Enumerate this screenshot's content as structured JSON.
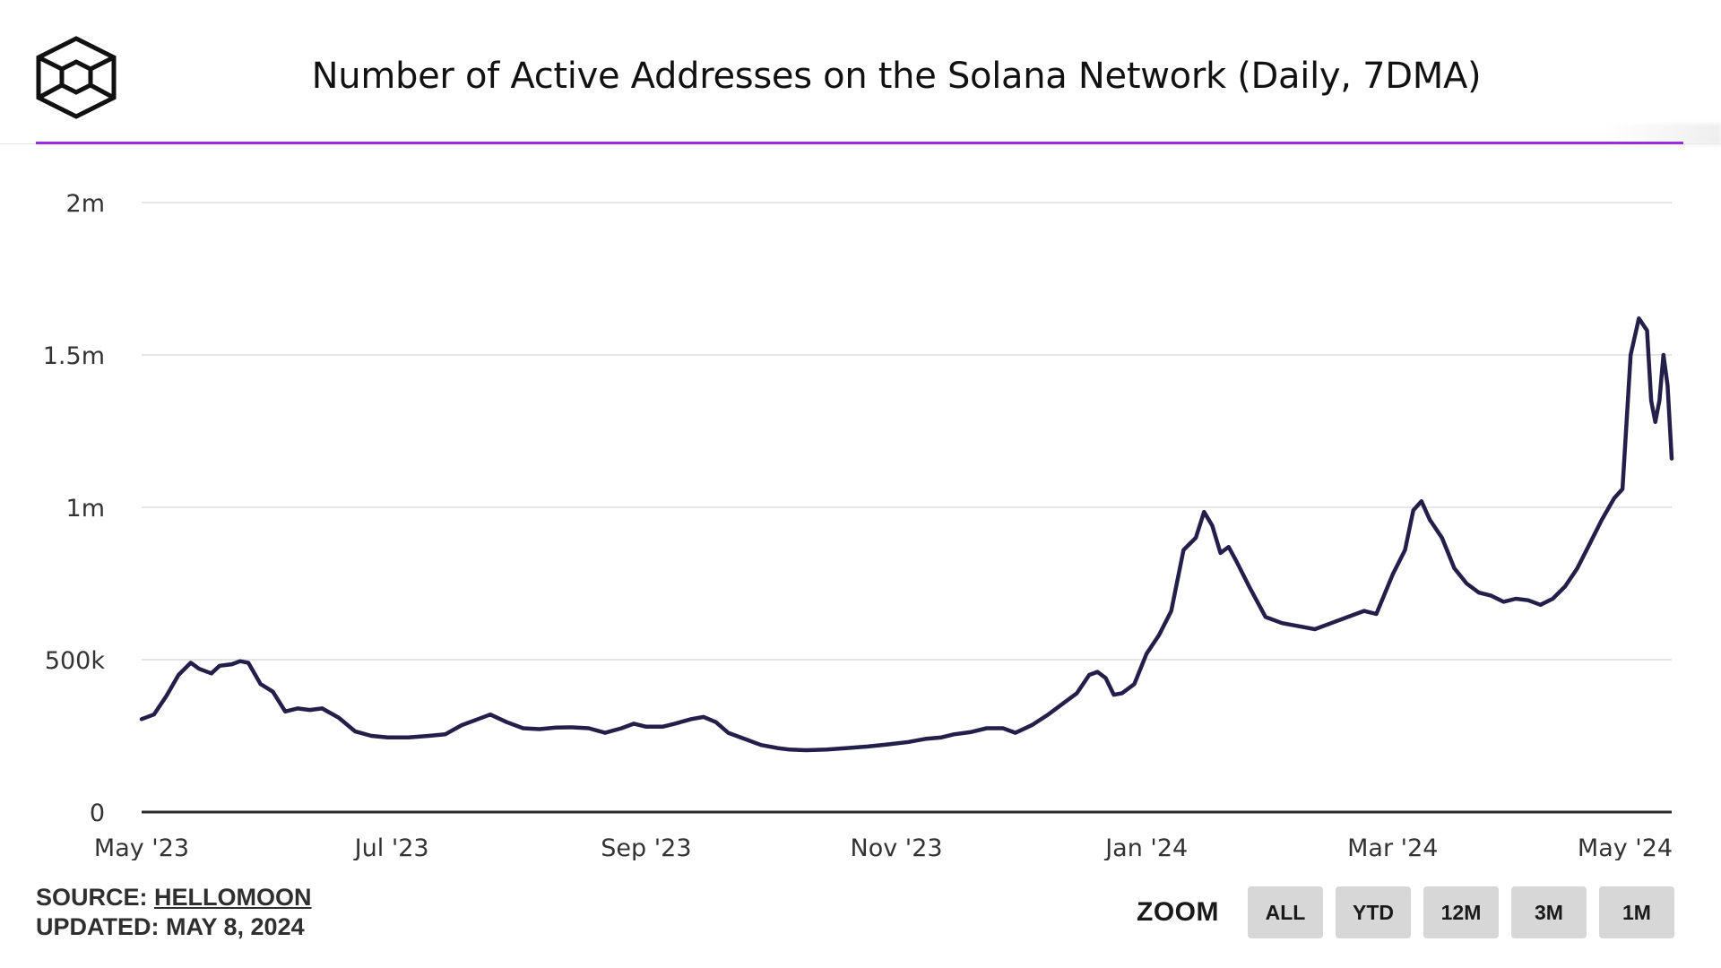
{
  "title": "Number of Active Addresses on the Solana Network (Daily, 7DMA)",
  "colors": {
    "accent": "#9b2be0",
    "series": "#231f4a",
    "grid": "#e6e6e6",
    "axis": "#2a2a2a",
    "button_bg": "#d7d7d7"
  },
  "logo": {
    "icon": "cube-icon"
  },
  "footer": {
    "source_label": "SOURCE:",
    "source_link": "HELLOMOON",
    "updated": "UPDATED: MAY 8, 2024"
  },
  "zoom": {
    "label": "ZOOM",
    "buttons": [
      "ALL",
      "YTD",
      "12M",
      "3M",
      "1M"
    ]
  },
  "chart_data": {
    "type": "line",
    "title": "Number of Active Addresses on the Solana Network (Daily, 7DMA)",
    "xlabel": "",
    "ylabel": "",
    "x_range": [
      "2023-05-01",
      "2024-05-08"
    ],
    "ylim": [
      0,
      2000000
    ],
    "y_ticks": [
      {
        "value": 0,
        "label": "0"
      },
      {
        "value": 500000,
        "label": "500k"
      },
      {
        "value": 1000000,
        "label": "1m"
      },
      {
        "value": 1500000,
        "label": "1.5m"
      },
      {
        "value": 2000000,
        "label": "2m"
      }
    ],
    "x_ticks": [
      {
        "date": "2023-05-01",
        "label": "May '23"
      },
      {
        "date": "2023-07-01",
        "label": "Jul '23"
      },
      {
        "date": "2023-09-01",
        "label": "Sep '23"
      },
      {
        "date": "2023-11-01",
        "label": "Nov '23"
      },
      {
        "date": "2024-01-01",
        "label": "Jan '24"
      },
      {
        "date": "2024-03-01",
        "label": "Mar '24"
      },
      {
        "date": "2024-05-01",
        "label": "May '24"
      }
    ],
    "grid": true,
    "legend": "none",
    "series": [
      {
        "points": [
          [
            "2023-05-01",
            305000
          ],
          [
            "2023-05-04",
            320000
          ],
          [
            "2023-05-07",
            380000
          ],
          [
            "2023-05-10",
            450000
          ],
          [
            "2023-05-13",
            490000
          ],
          [
            "2023-05-15",
            470000
          ],
          [
            "2023-05-18",
            455000
          ],
          [
            "2023-05-20",
            480000
          ],
          [
            "2023-05-23",
            485000
          ],
          [
            "2023-05-25",
            495000
          ],
          [
            "2023-05-27",
            490000
          ],
          [
            "2023-05-30",
            420000
          ],
          [
            "2023-06-02",
            395000
          ],
          [
            "2023-06-05",
            330000
          ],
          [
            "2023-06-08",
            340000
          ],
          [
            "2023-06-11",
            335000
          ],
          [
            "2023-06-14",
            340000
          ],
          [
            "2023-06-18",
            310000
          ],
          [
            "2023-06-22",
            265000
          ],
          [
            "2023-06-26",
            250000
          ],
          [
            "2023-06-30",
            245000
          ],
          [
            "2023-07-05",
            245000
          ],
          [
            "2023-07-10",
            250000
          ],
          [
            "2023-07-14",
            255000
          ],
          [
            "2023-07-18",
            285000
          ],
          [
            "2023-07-22",
            305000
          ],
          [
            "2023-07-25",
            320000
          ],
          [
            "2023-07-29",
            295000
          ],
          [
            "2023-08-02",
            275000
          ],
          [
            "2023-08-06",
            272000
          ],
          [
            "2023-08-10",
            277000
          ],
          [
            "2023-08-14",
            278000
          ],
          [
            "2023-08-18",
            275000
          ],
          [
            "2023-08-22",
            260000
          ],
          [
            "2023-08-26",
            275000
          ],
          [
            "2023-08-29",
            290000
          ],
          [
            "2023-09-01",
            280000
          ],
          [
            "2023-09-05",
            280000
          ],
          [
            "2023-09-08",
            290000
          ],
          [
            "2023-09-12",
            305000
          ],
          [
            "2023-09-15",
            312000
          ],
          [
            "2023-09-18",
            295000
          ],
          [
            "2023-09-21",
            260000
          ],
          [
            "2023-09-25",
            240000
          ],
          [
            "2023-09-29",
            220000
          ],
          [
            "2023-10-03",
            210000
          ],
          [
            "2023-10-06",
            205000
          ],
          [
            "2023-10-10",
            203000
          ],
          [
            "2023-10-15",
            205000
          ],
          [
            "2023-10-20",
            210000
          ],
          [
            "2023-10-25",
            215000
          ],
          [
            "2023-10-30",
            222000
          ],
          [
            "2023-11-04",
            230000
          ],
          [
            "2023-11-08",
            240000
          ],
          [
            "2023-11-12",
            245000
          ],
          [
            "2023-11-15",
            255000
          ],
          [
            "2023-11-19",
            262000
          ],
          [
            "2023-11-23",
            275000
          ],
          [
            "2023-11-27",
            275000
          ],
          [
            "2023-11-30",
            260000
          ],
          [
            "2023-12-04",
            285000
          ],
          [
            "2023-12-08",
            320000
          ],
          [
            "2023-12-12",
            360000
          ],
          [
            "2023-12-15",
            390000
          ],
          [
            "2023-12-18",
            450000
          ],
          [
            "2023-12-20",
            460000
          ],
          [
            "2023-12-22",
            440000
          ],
          [
            "2023-12-24",
            385000
          ],
          [
            "2023-12-26",
            390000
          ],
          [
            "2023-12-29",
            420000
          ],
          [
            "2024-01-01",
            520000
          ],
          [
            "2024-01-04",
            580000
          ],
          [
            "2024-01-07",
            660000
          ],
          [
            "2024-01-10",
            860000
          ],
          [
            "2024-01-13",
            900000
          ],
          [
            "2024-01-15",
            985000
          ],
          [
            "2024-01-17",
            940000
          ],
          [
            "2024-01-19",
            850000
          ],
          [
            "2024-01-21",
            870000
          ],
          [
            "2024-01-23",
            820000
          ],
          [
            "2024-01-26",
            740000
          ],
          [
            "2024-01-30",
            640000
          ],
          [
            "2024-02-03",
            620000
          ],
          [
            "2024-02-07",
            610000
          ],
          [
            "2024-02-11",
            600000
          ],
          [
            "2024-02-15",
            620000
          ],
          [
            "2024-02-19",
            640000
          ],
          [
            "2024-02-23",
            660000
          ],
          [
            "2024-02-26",
            650000
          ],
          [
            "2024-03-01",
            780000
          ],
          [
            "2024-03-04",
            860000
          ],
          [
            "2024-03-06",
            990000
          ],
          [
            "2024-03-08",
            1020000
          ],
          [
            "2024-03-10",
            960000
          ],
          [
            "2024-03-13",
            900000
          ],
          [
            "2024-03-16",
            800000
          ],
          [
            "2024-03-19",
            750000
          ],
          [
            "2024-03-22",
            720000
          ],
          [
            "2024-03-25",
            710000
          ],
          [
            "2024-03-28",
            690000
          ],
          [
            "2024-03-31",
            700000
          ],
          [
            "2024-04-03",
            695000
          ],
          [
            "2024-04-06",
            680000
          ],
          [
            "2024-04-09",
            700000
          ],
          [
            "2024-04-12",
            740000
          ],
          [
            "2024-04-15",
            800000
          ],
          [
            "2024-04-18",
            880000
          ],
          [
            "2024-04-21",
            960000
          ],
          [
            "2024-04-24",
            1030000
          ],
          [
            "2024-04-26",
            1060000
          ],
          [
            "2024-04-28",
            1500000
          ],
          [
            "2024-04-30",
            1620000
          ],
          [
            "2024-05-02",
            1580000
          ],
          [
            "2024-05-03",
            1350000
          ],
          [
            "2024-05-04",
            1280000
          ],
          [
            "2024-05-05",
            1350000
          ],
          [
            "2024-05-06",
            1500000
          ],
          [
            "2024-05-07",
            1400000
          ],
          [
            "2024-05-08",
            1160000
          ]
        ]
      }
    ]
  }
}
